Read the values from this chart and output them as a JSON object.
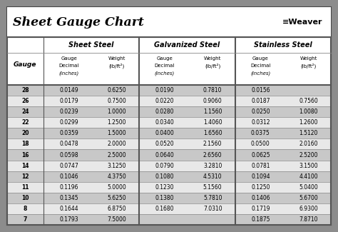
{
  "title": "Sheet Gauge Chart",
  "outer_bg": "#8c8c8c",
  "inner_bg": "#ffffff",
  "border_color": "#333333",
  "row_dark": "#c8c8c8",
  "row_light": "#e8e8e8",
  "header_bg": "#ffffff",
  "gauges": [
    28,
    26,
    24,
    22,
    20,
    18,
    16,
    14,
    12,
    11,
    10,
    8,
    7
  ],
  "sheet_steel": [
    [
      "0.0149",
      "0.6250"
    ],
    [
      "0.0179",
      "0.7500"
    ],
    [
      "0.0239",
      "1.0000"
    ],
    [
      "0.0299",
      "1.2500"
    ],
    [
      "0.0359",
      "1.5000"
    ],
    [
      "0.0478",
      "2.0000"
    ],
    [
      "0.0598",
      "2.5000"
    ],
    [
      "0.0747",
      "3.1250"
    ],
    [
      "0.1046",
      "4.3750"
    ],
    [
      "0.1196",
      "5.0000"
    ],
    [
      "0.1345",
      "5.6250"
    ],
    [
      "0.1644",
      "6.8750"
    ],
    [
      "0.1793",
      "7.5000"
    ]
  ],
  "galvanized_steel": [
    [
      "0.0190",
      "0.7810"
    ],
    [
      "0.0220",
      "0.9060"
    ],
    [
      "0.0280",
      "1.1560"
    ],
    [
      "0.0340",
      "1.4060"
    ],
    [
      "0.0400",
      "1.6560"
    ],
    [
      "0.0520",
      "2.1560"
    ],
    [
      "0.0640",
      "2.6560"
    ],
    [
      "0.0790",
      "3.2810"
    ],
    [
      "0.1080",
      "4.5310"
    ],
    [
      "0.1230",
      "5.1560"
    ],
    [
      "0.1380",
      "5.7810"
    ],
    [
      "0.1680",
      "7.0310"
    ],
    [
      "",
      ""
    ]
  ],
  "stainless_steel": [
    [
      "0.0156",
      ""
    ],
    [
      "0.0187",
      "0.7560"
    ],
    [
      "0.0250",
      "1.0080"
    ],
    [
      "0.0312",
      "1.2600"
    ],
    [
      "0.0375",
      "1.5120"
    ],
    [
      "0.0500",
      "2.0160"
    ],
    [
      "0.0625",
      "2.5200"
    ],
    [
      "0.0781",
      "3.1500"
    ],
    [
      "0.1094",
      "4.4100"
    ],
    [
      "0.1250",
      "5.0400"
    ],
    [
      "0.1406",
      "5.6700"
    ],
    [
      "0.1719",
      "6.9300"
    ],
    [
      "0.1875",
      "7.8710"
    ]
  ],
  "figsize": [
    4.74,
    3.25
  ],
  "dpi": 100
}
